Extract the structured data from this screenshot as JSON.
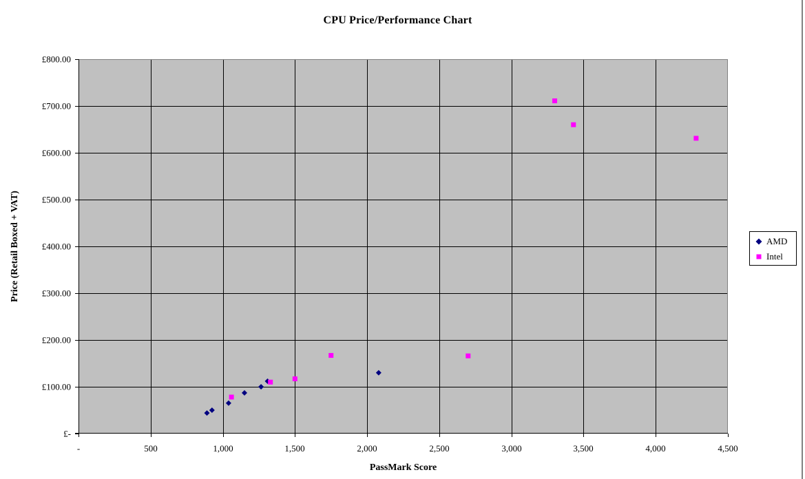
{
  "window": {
    "background": "#FFFFFF",
    "right_border_color": "#808080"
  },
  "chart_data": {
    "type": "scatter",
    "title": "CPU Price/Performance Chart",
    "xlabel": "PassMark Score",
    "ylabel": "Price (Retail Boxed + VAT)",
    "xlim": [
      0,
      4500
    ],
    "ylim": [
      0,
      800
    ],
    "grid": true,
    "legend_position": "right-outside",
    "plot_bg_color": "#C0C0C0",
    "gridline_color": "#000000",
    "plot_border_color": "#808080",
    "axis_color": "#000000",
    "x_ticks": [
      {
        "value": 0,
        "label": "-"
      },
      {
        "value": 500,
        "label": "500"
      },
      {
        "value": 1000,
        "label": "1,000"
      },
      {
        "value": 1500,
        "label": "1,500"
      },
      {
        "value": 2000,
        "label": "2,000"
      },
      {
        "value": 2500,
        "label": "2,500"
      },
      {
        "value": 3000,
        "label": "3,000"
      },
      {
        "value": 3500,
        "label": "3,500"
      },
      {
        "value": 4000,
        "label": "4,000"
      },
      {
        "value": 4500,
        "label": "4,500"
      }
    ],
    "y_ticks": [
      {
        "value": 0,
        "label": "£-"
      },
      {
        "value": 100,
        "label": "£100.00"
      },
      {
        "value": 200,
        "label": "£200.00"
      },
      {
        "value": 300,
        "label": "£300.00"
      },
      {
        "value": 400,
        "label": "£400.00"
      },
      {
        "value": 500,
        "label": "£500.00"
      },
      {
        "value": 600,
        "label": "£600.00"
      },
      {
        "value": 700,
        "label": "£700.00"
      },
      {
        "value": 800,
        "label": "£800.00"
      }
    ],
    "series": [
      {
        "name": "AMD",
        "marker": "diamond",
        "color": "#000080",
        "points": [
          [
            890,
            44
          ],
          [
            925,
            50
          ],
          [
            1040,
            65
          ],
          [
            1150,
            87
          ],
          [
            1265,
            100
          ],
          [
            1310,
            112
          ],
          [
            2080,
            130
          ]
        ]
      },
      {
        "name": "Intel",
        "marker": "square",
        "color": "#FF00FF",
        "points": [
          [
            1060,
            78
          ],
          [
            1330,
            110
          ],
          [
            1500,
            117
          ],
          [
            1750,
            167
          ],
          [
            2700,
            166
          ],
          [
            3300,
            711
          ],
          [
            3430,
            660
          ],
          [
            4280,
            631
          ]
        ]
      }
    ]
  }
}
